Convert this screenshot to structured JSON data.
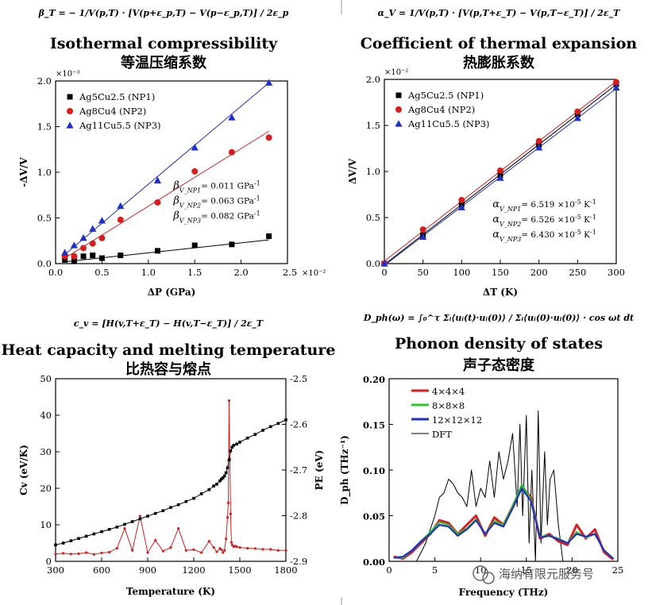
{
  "watermark": "海纳有限元服务号",
  "chart_data": [
    {
      "id": "compressibility",
      "type": "scatter",
      "equation": "β_T = − 1/V(p,T) · [V(p+ε_p,T) − V(p−ε_p,T)] / 2ε_p",
      "title": "Isothermal compressibility",
      "subtitle": "等温压缩系数",
      "xlabel": "ΔP (GPa)",
      "ylabel": "-ΔV/V",
      "x_multiplier": "×10⁻²",
      "y_multiplier": "×10⁻³",
      "xlim": [
        0,
        2.5
      ],
      "ylim": [
        0,
        2.0
      ],
      "xticks": [
        "0.0",
        "0.5",
        "1.0",
        "1.5",
        "2.0",
        "2.5"
      ],
      "yticks": [
        "0.0",
        "0.5",
        "1.0",
        "1.5",
        "2.0"
      ],
      "legend_position": "top-left",
      "series": [
        {
          "name": "Ag5Cu2.5 (NP1)",
          "color": "#000000",
          "marker": "square",
          "x": [
            0.1,
            0.2,
            0.3,
            0.4,
            0.5,
            0.7,
            1.1,
            1.5,
            1.9,
            2.3
          ],
          "y": [
            0.04,
            0.03,
            0.08,
            0.09,
            0.06,
            0.09,
            0.14,
            0.2,
            0.21,
            0.3
          ],
          "fit": [
            [
              0.1,
              0.02
            ],
            [
              2.3,
              0.26
            ]
          ]
        },
        {
          "name": "Ag8Cu4 (NP2)",
          "color": "#d81e1e",
          "marker": "circle",
          "x": [
            0.1,
            0.2,
            0.3,
            0.4,
            0.5,
            0.7,
            1.1,
            1.5,
            1.9,
            2.3
          ],
          "y": [
            0.08,
            0.08,
            0.17,
            0.22,
            0.28,
            0.48,
            0.67,
            1.01,
            1.22,
            1.38
          ],
          "fit": [
            [
              0.1,
              0.06
            ],
            [
              2.3,
              1.45
            ]
          ]
        },
        {
          "name": "Ag11Cu5.5 (NP3)",
          "color": "#1f2fc8",
          "marker": "triangle",
          "x": [
            0.1,
            0.2,
            0.3,
            0.4,
            0.5,
            0.7,
            1.1,
            1.5,
            1.9,
            2.3
          ],
          "y": [
            0.12,
            0.2,
            0.28,
            0.38,
            0.47,
            0.63,
            0.91,
            1.27,
            1.6,
            1.98
          ],
          "fit": [
            [
              0.1,
              0.1
            ],
            [
              2.3,
              1.98
            ]
          ]
        }
      ],
      "annotations": [
        {
          "symbol": "β",
          "sub": "V_NP1",
          "text": "= 0.011 GPa",
          "sup": "-1"
        },
        {
          "symbol": "β",
          "sub": "V_NP2",
          "text": "= 0.063 GPa",
          "sup": "-1"
        },
        {
          "symbol": "β",
          "sub": "V_NP3",
          "text": "= 0.082 GPa",
          "sup": "-1"
        }
      ]
    },
    {
      "id": "expansion",
      "type": "scatter",
      "equation": "α_V = 1/V(p,T) · [V(p,T+ε_T) − V(p,T−ε_T)] / 2ε_T",
      "title": "Coefficient of thermal expansion",
      "subtitle": "热膨胀系数",
      "xlabel": "ΔT (K)",
      "ylabel": "ΔV/V",
      "y_multiplier": "×10⁻²",
      "xlim": [
        0,
        300
      ],
      "ylim": [
        0,
        2.0
      ],
      "xticks": [
        "0",
        "50",
        "100",
        "150",
        "200",
        "250",
        "300"
      ],
      "yticks": [
        "0.0",
        "0.5",
        "1.0",
        "1.5",
        "2.0"
      ],
      "legend_position": "top-left",
      "series": [
        {
          "name": "Ag5Cu2.5 (NP1)",
          "color": "#000000",
          "marker": "square",
          "x": [
            0,
            50,
            100,
            150,
            200,
            250,
            300
          ],
          "y": [
            0.0,
            0.31,
            0.64,
            0.96,
            1.29,
            1.62,
            1.95
          ]
        },
        {
          "name": "Ag8Cu4 (NP2)",
          "color": "#d81e1e",
          "marker": "circle",
          "x": [
            0,
            50,
            100,
            150,
            200,
            250,
            300
          ],
          "y": [
            0.0,
            0.37,
            0.69,
            1.01,
            1.33,
            1.65,
            1.97
          ]
        },
        {
          "name": "Ag11Cu5.5 (NP3)",
          "color": "#1f2fc8",
          "marker": "triangle",
          "x": [
            0,
            50,
            100,
            150,
            200,
            250,
            300
          ],
          "y": [
            0.0,
            0.29,
            0.61,
            0.93,
            1.26,
            1.58,
            1.91
          ]
        }
      ],
      "annotations": [
        {
          "symbol": "α",
          "sub": "V_NP1",
          "text": "= 6.519 ×10",
          "exp": "-5",
          "unit": " K",
          "sup": "-1"
        },
        {
          "symbol": "α",
          "sub": "V_NP2",
          "text": "= 6.526 ×10",
          "exp": "-5",
          "unit": " K",
          "sup": "-1"
        },
        {
          "symbol": "α",
          "sub": "V_NP3",
          "text": "= 6.430 ×10",
          "exp": "-5",
          "unit": " K",
          "sup": "-1"
        }
      ]
    },
    {
      "id": "heat-capacity",
      "type": "line",
      "equation": "c_v = [H(v,T+ε_T) − H(v,T−ε_T)] / 2ε_T",
      "title": "Heat capacity and melting temperature",
      "subtitle": "比热容与熔点",
      "xlabel": "Temperature (K)",
      "ylabel": "Cv (eV/K)",
      "y2label": "PE (eV)",
      "xlim": [
        300,
        1800
      ],
      "ylim": [
        0,
        50
      ],
      "y2lim": [
        -2.9,
        -2.5
      ],
      "xticks": [
        "300",
        "600",
        "900",
        "1200",
        "1500",
        "1800"
      ],
      "yticks": [
        "0",
        "10",
        "20",
        "30",
        "40",
        "50"
      ],
      "y2ticks": [
        "-2.9",
        "-2.8",
        "-2.7",
        "-2.6",
        "-2.5"
      ],
      "series": [
        {
          "name": "Cv",
          "color": "#d81e1e",
          "axis": "left",
          "x": [
            300,
            350,
            400,
            450,
            500,
            550,
            600,
            650,
            700,
            750,
            800,
            850,
            900,
            950,
            1000,
            1050,
            1100,
            1150,
            1200,
            1250,
            1300,
            1330,
            1350,
            1370,
            1380,
            1390,
            1400,
            1410,
            1420,
            1425,
            1430,
            1435,
            1440,
            1445,
            1450,
            1460,
            1470,
            1480,
            1500,
            1550,
            1600,
            1650,
            1700,
            1750,
            1800
          ],
          "y": [
            2.0,
            2.2,
            2.0,
            2.1,
            2.4,
            1.9,
            2.3,
            2.5,
            3.6,
            9.0,
            3.0,
            12.4,
            2.4,
            5.8,
            2.8,
            3.8,
            9.0,
            3.0,
            3.2,
            2.4,
            5.5,
            3.8,
            2.6,
            3.5,
            3.2,
            2.4,
            3.0,
            6.2,
            12.0,
            16.0,
            44.0,
            28.0,
            13.0,
            5.2,
            4.5,
            4.0,
            4.2,
            4.0,
            3.8,
            3.6,
            3.5,
            3.3,
            3.3,
            3.0,
            3.0
          ]
        },
        {
          "name": "PE",
          "color": "#000000",
          "axis": "right",
          "x": [
            300,
            350,
            400,
            450,
            500,
            550,
            600,
            650,
            700,
            750,
            800,
            850,
            900,
            950,
            1000,
            1050,
            1100,
            1150,
            1200,
            1250,
            1300,
            1330,
            1350,
            1370,
            1380,
            1390,
            1400,
            1410,
            1420,
            1430,
            1440,
            1450,
            1460,
            1480,
            1500,
            1550,
            1600,
            1650,
            1700,
            1750,
            1800
          ],
          "y": [
            -2.864,
            -2.86,
            -2.855,
            -2.85,
            -2.845,
            -2.84,
            -2.835,
            -2.83,
            -2.825,
            -2.819,
            -2.813,
            -2.807,
            -2.801,
            -2.795,
            -2.789,
            -2.782,
            -2.776,
            -2.769,
            -2.762,
            -2.752,
            -2.743,
            -2.735,
            -2.731,
            -2.724,
            -2.72,
            -2.717,
            -2.713,
            -2.706,
            -2.695,
            -2.678,
            -2.658,
            -2.65,
            -2.646,
            -2.643,
            -2.639,
            -2.63,
            -2.622,
            -2.613,
            -2.605,
            -2.598,
            -2.59
          ]
        }
      ]
    },
    {
      "id": "phonon-dos",
      "type": "line",
      "equation": "D_ph(ω) = ∫₀^τ Σᵢ⟨uᵢ(t)·uᵢ(0)⟩ / Σᵢ⟨uᵢ(0)·uᵢ(0)⟩ · cos ωt dt",
      "title": "Phonon density of states",
      "subtitle": "声子态密度",
      "xlabel": "Frequency (THz)",
      "ylabel": "D_ph (THz⁻¹)",
      "xlim": [
        0,
        25
      ],
      "ylim": [
        0,
        0.2
      ],
      "xticks": [
        "0",
        "5",
        "10",
        "15",
        "20",
        "25"
      ],
      "yticks": [
        "0.00",
        "0.05",
        "0.10",
        "0.15",
        "0.20"
      ],
      "legend_position": "top-left",
      "series": [
        {
          "name": "4×4×4",
          "color": "#d81e1e",
          "x": [
            0.5,
            1.5,
            2.5,
            3.5,
            4.5,
            5.5,
            6.5,
            7.5,
            8.5,
            9.5,
            10.5,
            11.5,
            12.5,
            13.5,
            14.5,
            15.5,
            16.5,
            17.5,
            18.5,
            19.5,
            20.5,
            21.5,
            22.5,
            23.5,
            24.5
          ],
          "y": [
            0.005,
            0.003,
            0.01,
            0.02,
            0.03,
            0.045,
            0.042,
            0.03,
            0.04,
            0.05,
            0.028,
            0.048,
            0.04,
            0.06,
            0.082,
            0.07,
            0.025,
            0.03,
            0.022,
            0.018,
            0.04,
            0.025,
            0.035,
            0.01,
            0.002
          ]
        },
        {
          "name": "8×8×8",
          "color": "#2cc52c",
          "x": [
            0.5,
            1.5,
            2.5,
            3.5,
            4.5,
            5.5,
            6.5,
            7.5,
            8.5,
            9.5,
            10.5,
            11.5,
            12.5,
            13.5,
            14.5,
            15.5,
            16.5,
            17.5,
            18.5,
            19.5,
            20.5,
            21.5,
            22.5,
            23.5,
            24.5
          ],
          "y": [
            0.004,
            0.004,
            0.012,
            0.022,
            0.032,
            0.043,
            0.04,
            0.03,
            0.036,
            0.046,
            0.03,
            0.044,
            0.04,
            0.06,
            0.084,
            0.068,
            0.027,
            0.028,
            0.025,
            0.02,
            0.032,
            0.026,
            0.03,
            0.012,
            0.003
          ]
        },
        {
          "name": "12×12×12",
          "color": "#1f2fc8",
          "x": [
            0.5,
            1.5,
            2.5,
            3.5,
            4.5,
            5.5,
            6.5,
            7.5,
            8.5,
            9.5,
            10.5,
            11.5,
            12.5,
            13.5,
            14.5,
            15.5,
            16.5,
            17.5,
            18.5,
            19.5,
            20.5,
            21.5,
            22.5,
            23.5,
            24.5
          ],
          "y": [
            0.004,
            0.005,
            0.012,
            0.022,
            0.03,
            0.04,
            0.038,
            0.028,
            0.035,
            0.045,
            0.03,
            0.042,
            0.038,
            0.058,
            0.08,
            0.066,
            0.026,
            0.028,
            0.024,
            0.02,
            0.03,
            0.027,
            0.03,
            0.012,
            0.003
          ]
        },
        {
          "name": "DFT",
          "color": "#000000",
          "x": [
            3,
            4,
            5,
            5.5,
            6,
            6.5,
            7,
            7.5,
            8,
            8.5,
            9,
            9.5,
            10,
            10.5,
            11,
            11.5,
            12,
            12.5,
            13,
            13.5,
            14,
            14.3,
            14.6,
            15,
            15.3,
            15.6,
            16,
            16.3,
            16.6,
            17,
            17.3,
            17.6,
            18,
            18.5,
            19
          ],
          "y": [
            0.0,
            0.02,
            0.05,
            0.07,
            0.075,
            0.09,
            0.085,
            0.075,
            0.07,
            0.06,
            0.1,
            0.06,
            0.08,
            0.07,
            0.11,
            0.07,
            0.12,
            0.09,
            0.11,
            0.14,
            0.06,
            0.15,
            0.05,
            0.16,
            0.02,
            0.1,
            0.0,
            0.165,
            0.02,
            0.12,
            0.04,
            0.09,
            0.1,
            0.04,
            0.0
          ]
        }
      ]
    }
  ]
}
